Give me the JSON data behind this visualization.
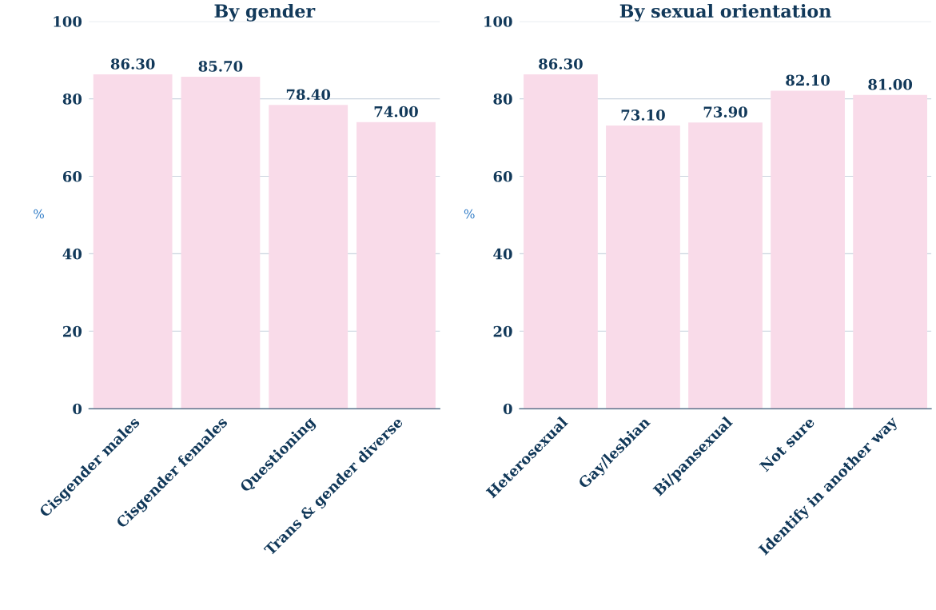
{
  "chart_data": [
    {
      "type": "bar",
      "title": "By gender",
      "ylabel": "%",
      "categories": [
        "Cisgender males",
        "Cisgender females",
        "Questioning",
        "Trans & gender diverse"
      ],
      "values": [
        86.3,
        85.7,
        78.4,
        74.0
      ],
      "value_labels": [
        "86.30",
        "85.70",
        "78.40",
        "74.00"
      ],
      "color": "#f9dbe9",
      "ylim": [
        0,
        100
      ],
      "yticks": [
        0,
        20,
        40,
        60,
        80,
        100
      ],
      "grid": "y"
    },
    {
      "type": "bar",
      "title": "By sexual orientation",
      "ylabel": "%",
      "categories": [
        "Heterosexual",
        "Gay/lesbian",
        "Bi/pansexual",
        "Not sure",
        "Identify in another way"
      ],
      "values": [
        86.3,
        73.1,
        73.9,
        82.1,
        81.0
      ],
      "value_labels": [
        "86.30",
        "73.10",
        "73.90",
        "82.10",
        "81.00"
      ],
      "color": "#f9dbe9",
      "ylim": [
        0,
        100
      ],
      "yticks": [
        0,
        20,
        40,
        60,
        80,
        100
      ],
      "grid": "y"
    }
  ]
}
